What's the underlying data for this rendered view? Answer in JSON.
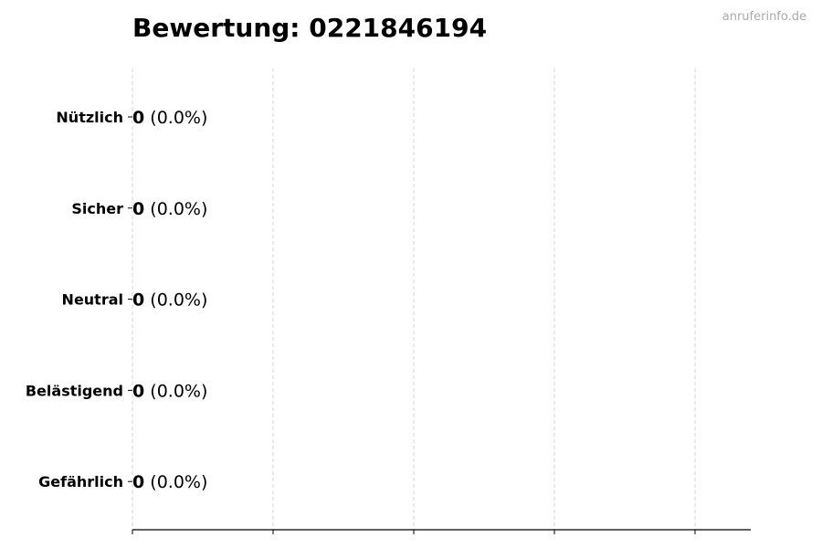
{
  "watermark": "anruferinfo.de",
  "chart_data": {
    "type": "bar",
    "orientation": "horizontal",
    "title": "Bewertung: 0221846194",
    "xlabel": "",
    "ylabel": "",
    "categories": [
      "Nützlich",
      "Sicher",
      "Neutral",
      "Belästigend",
      "Gefährlich"
    ],
    "values": [
      0,
      0,
      0,
      0,
      0
    ],
    "value_labels": [
      "0",
      "0",
      "0",
      "0",
      "0"
    ],
    "percent_labels": [
      "(0.0%)",
      "(0.0%)",
      "(0.0%)",
      "(0.0%)",
      "(0.0%)"
    ],
    "grid": "x dashed",
    "x_tick_labels_shown": false,
    "colors": {
      "bar_edge": "#000000",
      "grid": "#cccccc",
      "watermark": "#aaaaaa"
    }
  }
}
